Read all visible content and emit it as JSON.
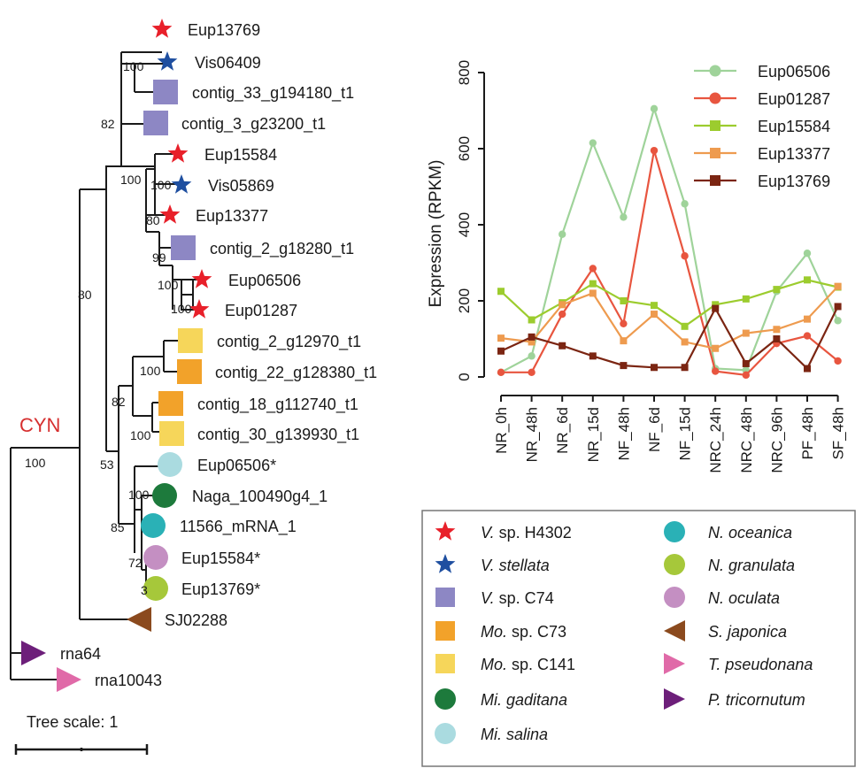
{
  "colors": {
    "red_star": "#e8202a",
    "blue_star": "#1f4fa0",
    "vsp_c74": "#8d87c4",
    "mo_c73": "#f2a22a",
    "mo_c141": "#f6d65a",
    "mi_gaditana": "#1d7a3c",
    "mi_salina": "#aadbe0",
    "n_oceanica": "#2ab1b6",
    "n_granulata": "#a6c83a",
    "n_oculata": "#c48fc2",
    "s_japonica": "#8b4a1e",
    "t_pseudonana": "#e06aa8",
    "p_tricornutum": "#6d1f7a",
    "clade_label": "#d62f2f"
  },
  "tree": {
    "clade_label": "CYN",
    "scale_label": "Tree scale: 1",
    "leaves": [
      {
        "label": "Eup13769",
        "marker": "star",
        "color": "#e8202a"
      },
      {
        "label": "Vis06409",
        "marker": "star",
        "color": "#1f4fa0"
      },
      {
        "label": "contig_33_g194180_t1",
        "marker": "square",
        "color": "#8d87c4"
      },
      {
        "label": "contig_3_g23200_t1",
        "marker": "square",
        "color": "#8d87c4"
      },
      {
        "label": "Eup15584",
        "marker": "star",
        "color": "#e8202a"
      },
      {
        "label": "Vis05869",
        "marker": "star",
        "color": "#1f4fa0"
      },
      {
        "label": "Eup13377",
        "marker": "star",
        "color": "#e8202a"
      },
      {
        "label": "contig_2_g18280_t1",
        "marker": "square",
        "color": "#8d87c4"
      },
      {
        "label": "Eup06506",
        "marker": "star",
        "color": "#e8202a"
      },
      {
        "label": "Eup01287",
        "marker": "star",
        "color": "#e8202a"
      },
      {
        "label": "contig_2_g12970_t1",
        "marker": "square",
        "color": "#f6d65a"
      },
      {
        "label": "contig_22_g128380_t1",
        "marker": "square",
        "color": "#f2a22a"
      },
      {
        "label": "contig_18_g112740_t1",
        "marker": "square",
        "color": "#f2a22a"
      },
      {
        "label": "contig_30_g139930_t1",
        "marker": "square",
        "color": "#f6d65a"
      },
      {
        "label": "Eup06506*",
        "marker": "circle",
        "color": "#aadbe0"
      },
      {
        "label": "Naga_100490g4_1",
        "marker": "circle",
        "color": "#1d7a3c"
      },
      {
        "label": "11566_mRNA_1",
        "marker": "circle",
        "color": "#2ab1b6"
      },
      {
        "label": "Eup15584*",
        "marker": "circle",
        "color": "#c48fc2"
      },
      {
        "label": "Eup13769*",
        "marker": "circle",
        "color": "#a6c83a"
      },
      {
        "label": "SJ02288",
        "marker": "tri-left",
        "color": "#8b4a1e"
      },
      {
        "label": "rna64",
        "marker": "tri-right",
        "color": "#6d1f7a"
      },
      {
        "label": "rna10043",
        "marker": "tri-right",
        "color": "#e06aa8"
      }
    ],
    "bootstrap": [
      "100",
      "82",
      "100",
      "100",
      "80",
      "99",
      "100",
      "100",
      "80",
      "100",
      "82",
      "100",
      "53",
      "100",
      "85",
      "72",
      "3",
      "100"
    ]
  },
  "chart_data": {
    "type": "line",
    "ylabel": "Expression (RPKM)",
    "xlabel": "",
    "ylim": [
      0,
      800
    ],
    "yticks": [
      "0",
      "200",
      "400",
      "600",
      "800"
    ],
    "categories": [
      "NR_0h",
      "NR_48h",
      "NR_6d",
      "NR_15d",
      "NF_48h",
      "NF_6d",
      "NF_15d",
      "NRC_24h",
      "NRC_48h",
      "NRC_96h",
      "PF_48h",
      "SF_48h"
    ],
    "series": [
      {
        "name": "Eup06506",
        "marker": "circle",
        "color": "#9fd39a",
        "values": [
          12,
          55,
          375,
          615,
          420,
          705,
          455,
          22,
          18,
          225,
          325,
          148
        ]
      },
      {
        "name": "Eup01287",
        "marker": "circle",
        "color": "#e8553f",
        "values": [
          12,
          12,
          165,
          285,
          140,
          595,
          318,
          15,
          5,
          88,
          108,
          42
        ]
      },
      {
        "name": "Eup15584",
        "marker": "square",
        "color": "#9ccc2e",
        "values": [
          225,
          150,
          195,
          245,
          200,
          188,
          133,
          190,
          205,
          230,
          255,
          236
        ]
      },
      {
        "name": "Eup13377",
        "marker": "square",
        "color": "#ee9b4f",
        "values": [
          102,
          92,
          190,
          220,
          95,
          165,
          92,
          75,
          115,
          125,
          152,
          238
        ]
      },
      {
        "name": "Eup13769",
        "marker": "square",
        "color": "#7b2512",
        "values": [
          68,
          105,
          82,
          55,
          30,
          25,
          25,
          180,
          35,
          100,
          22,
          185
        ]
      }
    ]
  },
  "species_legend": [
    {
      "genus": "V.",
      "rest": "sp. H4302",
      "marker": "star",
      "color": "#e8202a"
    },
    {
      "genus": "V. stellata",
      "rest": "",
      "marker": "star",
      "color": "#1f4fa0"
    },
    {
      "genus": "V.",
      "rest": "sp. C74",
      "marker": "square",
      "color": "#8d87c4"
    },
    {
      "genus": "Mo.",
      "rest": "sp. C73",
      "marker": "square",
      "color": "#f2a22a"
    },
    {
      "genus": "Mo.",
      "rest": "sp. C141",
      "marker": "square",
      "color": "#f6d65a"
    },
    {
      "genus": "Mi. gaditana",
      "rest": "",
      "marker": "circle",
      "color": "#1d7a3c"
    },
    {
      "genus": "Mi. salina",
      "rest": "",
      "marker": "circle",
      "color": "#aadbe0"
    },
    {
      "genus": "N. oceanica",
      "rest": "",
      "marker": "circle",
      "color": "#2ab1b6"
    },
    {
      "genus": "N. granulata",
      "rest": "",
      "marker": "circle",
      "color": "#a6c83a"
    },
    {
      "genus": "N. oculata",
      "rest": "",
      "marker": "circle",
      "color": "#c48fc2"
    },
    {
      "genus": "S. japonica",
      "rest": "",
      "marker": "tri-left",
      "color": "#8b4a1e"
    },
    {
      "genus": "T. pseudonana",
      "rest": "",
      "marker": "tri-right",
      "color": "#e06aa8"
    },
    {
      "genus": "P. tricornutum",
      "rest": "",
      "marker": "tri-right",
      "color": "#6d1f7a"
    }
  ]
}
